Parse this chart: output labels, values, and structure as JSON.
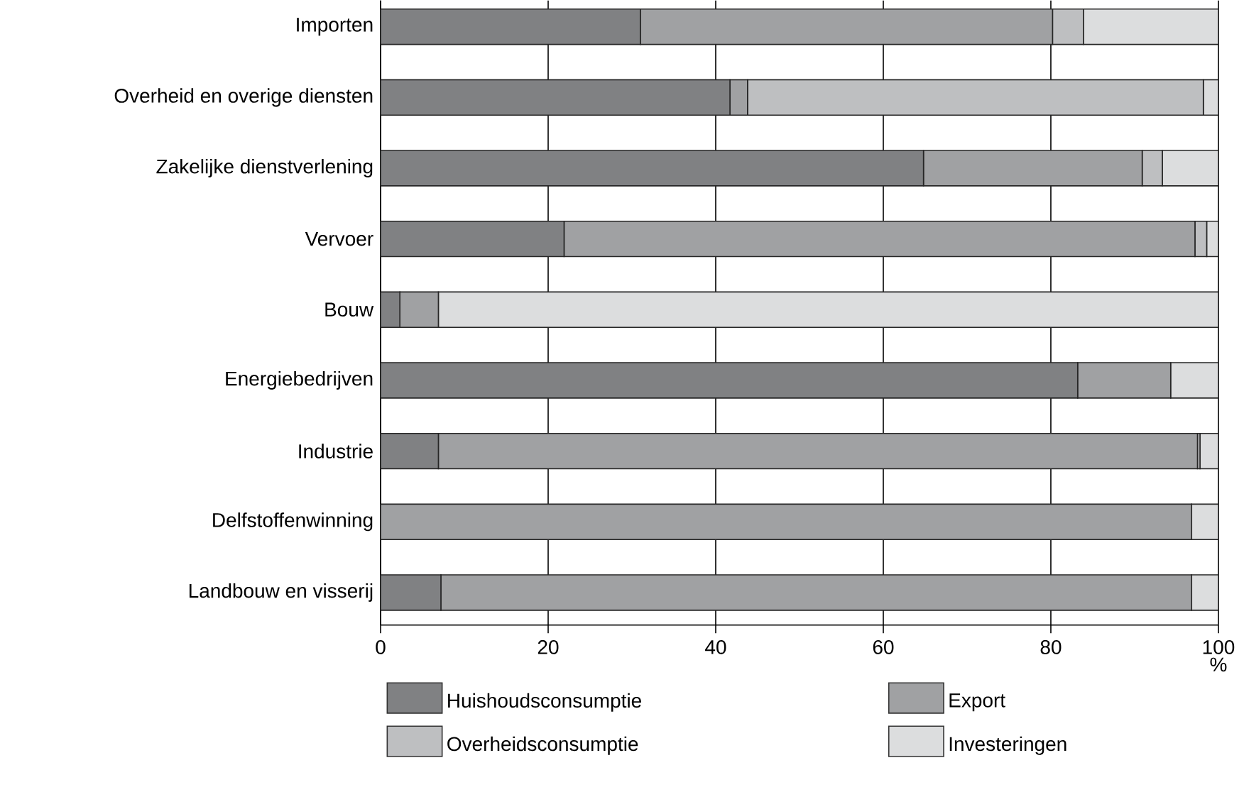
{
  "chart_data": {
    "type": "bar",
    "orientation": "horizontal",
    "stacked": true,
    "xlabel": "%",
    "categories": [
      "Importen",
      "Overheid en overige diensten",
      "Zakelijke dienstverlening",
      "Vervoer",
      "Bouw",
      "Energiebedrijven",
      "Industrie",
      "Delfstoffenwinning",
      "Landbouw en visserij"
    ],
    "series": [
      {
        "name": "Huishoudsconsumptie",
        "color": "#808183",
        "values": [
          31.0,
          41.7,
          64.8,
          21.9,
          2.3,
          83.2,
          6.9,
          0,
          7.2
        ]
      },
      {
        "name": "Export",
        "color": "#a0a1a3",
        "values": [
          49.2,
          2.1,
          26.1,
          75.3,
          4.6,
          11.1,
          90.6,
          96.8,
          89.6
        ]
      },
      {
        "name": "Overheidsconsumptie",
        "color": "#bebfc1",
        "values": [
          3.7,
          54.4,
          2.4,
          1.4,
          0,
          0,
          0.3,
          0,
          0
        ]
      },
      {
        "name": "Investeringen",
        "color": "#dcddde",
        "values": [
          16.1,
          1.8,
          6.7,
          1.4,
          93.1,
          5.7,
          2.2,
          3.2,
          3.2
        ]
      }
    ],
    "xlim": [
      0,
      100
    ],
    "xticks": [
      0,
      20,
      40,
      60,
      80,
      100
    ],
    "grid": "x",
    "legend": "bottom"
  }
}
